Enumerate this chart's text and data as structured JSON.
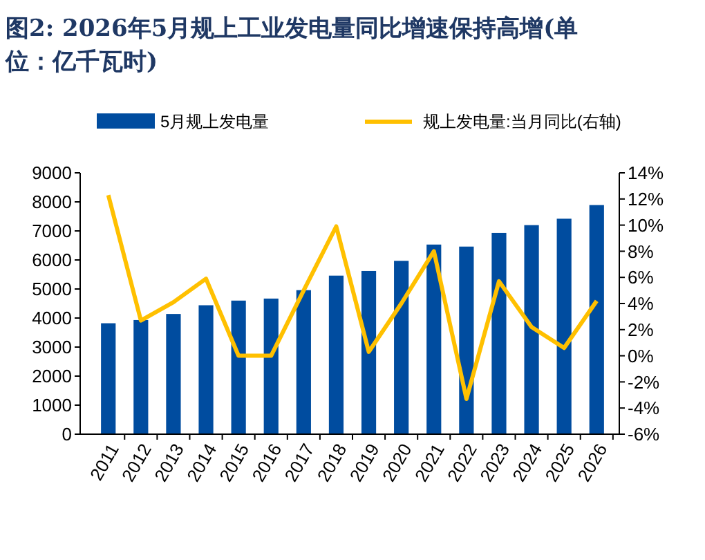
{
  "chart_data": {
    "type": "bar",
    "title": "图2: 2026年5月规上工业发电量同比增速保持高增(单位：亿千瓦时)",
    "categories": [
      "2011",
      "2012",
      "2013",
      "2014",
      "2015",
      "2016",
      "2017",
      "2018",
      "2019",
      "2020",
      "2021",
      "2022",
      "2023",
      "2024",
      "2025",
      "2026"
    ],
    "series": [
      {
        "name": "5月规上发电量",
        "color": "#004c9f",
        "values": [
          3820,
          3930,
          4140,
          4440,
          4600,
          4670,
          4960,
          5460,
          5620,
          5970,
          6530,
          6460,
          6930,
          7200,
          7420,
          7890
        ]
      },
      {
        "name": "规上发电量:当月同比(右轴)",
        "type": "line",
        "axis": "y2",
        "color": "#ffc000",
        "values": [
          12.3,
          2.7,
          4.1,
          5.9,
          0.0,
          0.0,
          5.0,
          9.9,
          0.3,
          4.0,
          8.0,
          -3.3,
          5.7,
          2.2,
          0.6,
          4.2
        ]
      }
    ],
    "ylim": [
      0,
      9000
    ],
    "yticks": [
      0,
      1000,
      2000,
      3000,
      4000,
      5000,
      6000,
      7000,
      8000,
      9000
    ],
    "y2lim": [
      -6,
      14
    ],
    "y2ticks": [
      {
        "value": -6,
        "label": "-6%"
      },
      {
        "value": -4,
        "label": "-4%"
      },
      {
        "value": -2,
        "label": "-2%"
      },
      {
        "value": 0,
        "label": "0%"
      },
      {
        "value": 2,
        "label": "2%"
      },
      {
        "value": 4,
        "label": "4%"
      },
      {
        "value": 6,
        "label": "6%"
      },
      {
        "value": 8,
        "label": "8%"
      },
      {
        "value": 10,
        "label": "10%"
      },
      {
        "value": 12,
        "label": "12%"
      },
      {
        "value": 14,
        "label": "14%"
      }
    ],
    "legend": "top",
    "grid": false,
    "marker": "none",
    "line_style": "solid"
  }
}
